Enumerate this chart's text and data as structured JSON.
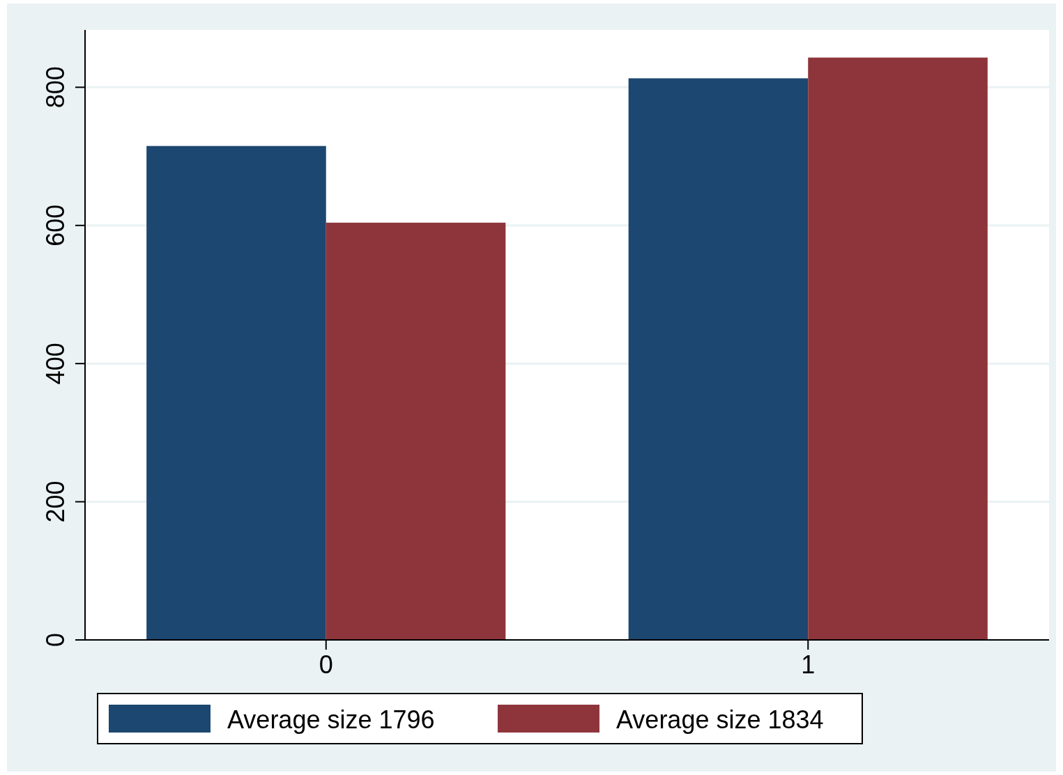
{
  "chart_data": {
    "type": "bar",
    "categories": [
      "0",
      "1"
    ],
    "series": [
      {
        "name": "Average size 1796",
        "color": "#1c4770",
        "values": [
          715,
          813
        ]
      },
      {
        "name": "Average size 1834",
        "color": "#8e353c",
        "values": [
          604,
          843
        ]
      }
    ],
    "ylim": [
      0,
      883
    ],
    "yticks": [
      0,
      200,
      400,
      600,
      800
    ],
    "grid": "y",
    "legend": "bottom"
  }
}
